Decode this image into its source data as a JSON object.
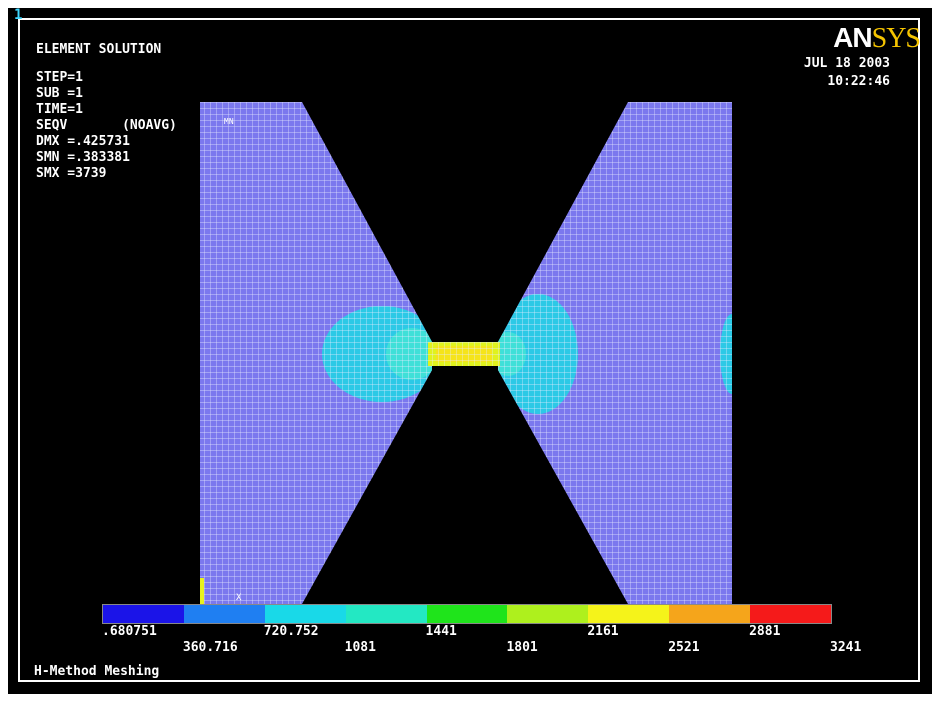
{
  "window": {
    "number": "1",
    "logo": {
      "prefix": "AN",
      "suffix": "SYS"
    },
    "date": "JUL 18 2003",
    "time": "10:22:46"
  },
  "solution_info": {
    "title": "ELEMENT SOLUTION",
    "step": "STEP=1",
    "sub": "SUB =1",
    "time": "TIME=1",
    "result": "SEQV       (NOAVG)",
    "dmx": "DMX =.425731",
    "smn": "SMN =.383381",
    "smx": "SMX =3739"
  },
  "plot_labels": {
    "mn": "MN",
    "mx": "X"
  },
  "legend": {
    "colors": [
      "#1b14e8",
      "#1f7ff2",
      "#19d9e8",
      "#23e8c3",
      "#1fe41b",
      "#aef01d",
      "#f5f31a",
      "#f5a51b",
      "#f51a1a"
    ],
    "upper_labels": [
      ".680751",
      "720.752",
      "1441",
      "2161",
      "2881"
    ],
    "lower_labels": [
      "360.716",
      "1081",
      "1801",
      "2521",
      "3241"
    ]
  },
  "footer": {
    "text": "H-Method Meshing"
  }
}
